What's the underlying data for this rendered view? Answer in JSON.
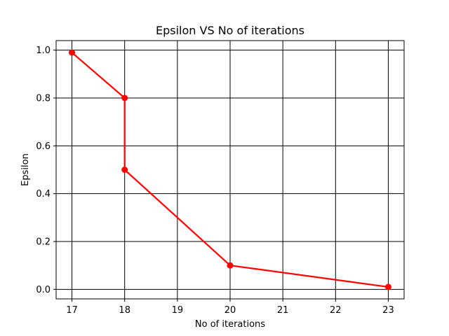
{
  "chart_data": {
    "type": "line",
    "title": "Epsilon VS No of iterations",
    "xlabel": "No of iterations",
    "ylabel": "Epsilon",
    "series": [
      {
        "x": [
          17,
          18,
          18,
          20,
          23
        ],
        "y": [
          0.99,
          0.8,
          0.5,
          0.1,
          0.01
        ],
        "color": "#ff0000",
        "marker": "circle"
      }
    ],
    "xlim": [
      16.7,
      23.3
    ],
    "ylim": [
      -0.04,
      1.04
    ],
    "xticks": [
      17,
      18,
      19,
      20,
      21,
      22,
      23
    ],
    "xtick_labels": [
      "17",
      "18",
      "19",
      "20",
      "21",
      "22",
      "23"
    ],
    "yticks": [
      0.0,
      0.2,
      0.4,
      0.6,
      0.8,
      1.0
    ],
    "ytick_labels": [
      "0.0",
      "0.2",
      "0.4",
      "0.6",
      "0.8",
      "1.0"
    ],
    "grid": true
  }
}
